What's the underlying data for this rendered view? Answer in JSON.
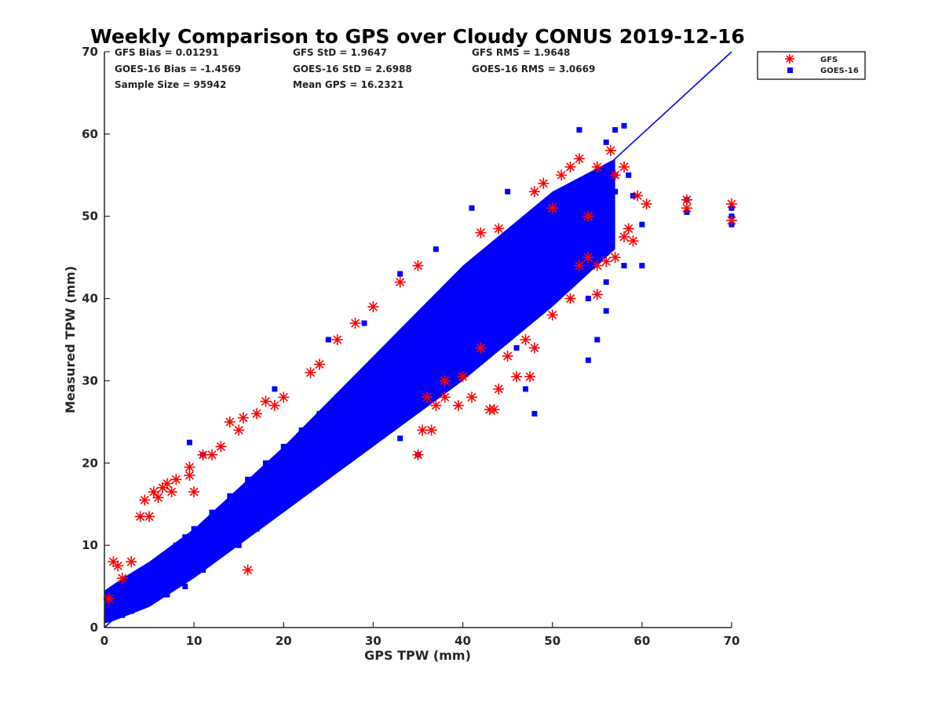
{
  "chart_data": {
    "type": "scatter",
    "title": "Weekly Comparison to GPS over Cloudy CONUS 2019-12-16",
    "xlabel": "GPS TPW (mm)",
    "ylabel": "Measured TPW (mm)",
    "xlim": [
      0,
      70
    ],
    "ylim": [
      0,
      70
    ],
    "xticks": [
      "0",
      "10",
      "20",
      "30",
      "40",
      "50",
      "60",
      "70"
    ],
    "yticks": [
      "0",
      "10",
      "20",
      "30",
      "40",
      "50",
      "60",
      "70"
    ],
    "grid": false,
    "legend_position": "top-right (outside plot)",
    "stats": [
      "GFS Bias = 0.01291",
      "GFS StD = 1.9647",
      "GFS RMS = 1.9648",
      "GOES-16 Bias = -1.4569",
      "GOES-16 StD = 2.6988",
      "GOES-16 RMS = 3.0669",
      "Sample Size = 95942",
      "Mean GPS = 16.2321"
    ],
    "series": [
      {
        "name": "GFS",
        "marker": "asterisk",
        "color": "#ff0000",
        "points": [
          [
            0.5,
            3.5
          ],
          [
            1,
            8
          ],
          [
            1.5,
            7.5
          ],
          [
            2,
            6
          ],
          [
            3,
            8
          ],
          [
            4,
            13.5
          ],
          [
            4.5,
            15.5
          ],
          [
            5,
            13.5
          ],
          [
            5.5,
            16.5
          ],
          [
            6,
            15.8
          ],
          [
            6.5,
            17
          ],
          [
            7,
            17.5
          ],
          [
            7.5,
            16.5
          ],
          [
            8,
            18
          ],
          [
            9.5,
            18.5
          ],
          [
            9.5,
            19.5
          ],
          [
            10,
            16.5
          ],
          [
            11,
            21
          ],
          [
            12,
            21
          ],
          [
            13,
            22
          ],
          [
            14,
            25
          ],
          [
            15,
            24
          ],
          [
            15.5,
            25.5
          ],
          [
            16,
            7
          ],
          [
            17,
            26
          ],
          [
            18,
            27.5
          ],
          [
            19,
            27
          ],
          [
            20,
            28
          ],
          [
            23,
            31
          ],
          [
            24,
            32
          ],
          [
            26,
            35
          ],
          [
            28,
            37
          ],
          [
            30,
            39
          ],
          [
            33,
            42
          ],
          [
            35,
            44
          ],
          [
            36,
            28
          ],
          [
            37,
            27
          ],
          [
            38,
            30
          ],
          [
            40,
            30.5
          ],
          [
            42,
            34
          ],
          [
            42,
            48
          ],
          [
            43,
            26.5
          ],
          [
            43.5,
            26.5
          ],
          [
            44,
            29
          ],
          [
            44,
            48.5
          ],
          [
            46,
            30.5
          ],
          [
            47,
            35
          ],
          [
            47.5,
            30.5
          ],
          [
            48,
            34
          ],
          [
            48,
            53
          ],
          [
            49,
            54
          ],
          [
            50,
            51
          ],
          [
            51,
            55
          ],
          [
            52,
            56
          ],
          [
            53,
            57
          ],
          [
            54,
            45
          ],
          [
            55,
            56
          ],
          [
            55,
            44
          ],
          [
            55,
            40.5
          ],
          [
            56,
            44.5
          ],
          [
            56.5,
            58
          ],
          [
            57,
            45
          ],
          [
            57,
            55
          ],
          [
            58,
            47.5
          ],
          [
            58,
            56
          ],
          [
            58.5,
            48.5
          ],
          [
            59,
            47
          ],
          [
            59.5,
            52.5
          ],
          [
            60.5,
            51.5
          ],
          [
            65,
            52
          ],
          [
            65,
            51
          ],
          [
            70,
            51.5
          ],
          [
            70,
            49.5
          ],
          [
            35,
            21
          ],
          [
            35.5,
            24
          ],
          [
            36.5,
            24
          ],
          [
            38,
            28
          ],
          [
            39.5,
            27
          ],
          [
            41,
            28
          ],
          [
            45,
            33
          ],
          [
            50,
            38
          ],
          [
            52,
            40
          ],
          [
            53,
            44
          ],
          [
            54,
            50
          ]
        ]
      },
      {
        "name": "GOES-16",
        "marker": "square",
        "color": "#0000ff",
        "points": [
          [
            0.5,
            1.5
          ],
          [
            1,
            2
          ],
          [
            2,
            1.5
          ],
          [
            3,
            3
          ],
          [
            4,
            5
          ],
          [
            5,
            6
          ],
          [
            6,
            7
          ],
          [
            7,
            9
          ],
          [
            8,
            10
          ],
          [
            9,
            11
          ],
          [
            10,
            12
          ],
          [
            12,
            14
          ],
          [
            14,
            16
          ],
          [
            16,
            18
          ],
          [
            18,
            20
          ],
          [
            20,
            22
          ],
          [
            22,
            24
          ],
          [
            24,
            26
          ],
          [
            26,
            28
          ],
          [
            28,
            30
          ],
          [
            30,
            32
          ],
          [
            32,
            34
          ],
          [
            34,
            36
          ],
          [
            36,
            38
          ],
          [
            38,
            40
          ],
          [
            40,
            41
          ],
          [
            42,
            43
          ],
          [
            44,
            45
          ],
          [
            46,
            46
          ],
          [
            48,
            47
          ],
          [
            50,
            48
          ],
          [
            52,
            50
          ],
          [
            54,
            51
          ],
          [
            56,
            52
          ],
          [
            57,
            55
          ],
          [
            57,
            53
          ],
          [
            53,
            60.5
          ],
          [
            57,
            60.5
          ],
          [
            56,
            59
          ],
          [
            58,
            61
          ],
          [
            58.5,
            55
          ],
          [
            59,
            52.5
          ],
          [
            60,
            49
          ],
          [
            60,
            44
          ],
          [
            55,
            35
          ],
          [
            54,
            32.5
          ],
          [
            48,
            26
          ],
          [
            47,
            29
          ],
          [
            46,
            34
          ],
          [
            45,
            37.5
          ],
          [
            56,
            38.5
          ],
          [
            54,
            40
          ],
          [
            56,
            42
          ],
          [
            58,
            44
          ],
          [
            65,
            50.5
          ],
          [
            65,
            52
          ],
          [
            70,
            50
          ],
          [
            70,
            49
          ],
          [
            70,
            51
          ],
          [
            35,
            21
          ],
          [
            33,
            23
          ],
          [
            31,
            25
          ],
          [
            29,
            24
          ],
          [
            27,
            22
          ],
          [
            25,
            20
          ],
          [
            23,
            18
          ],
          [
            21,
            16
          ],
          [
            19,
            14
          ],
          [
            17,
            12
          ],
          [
            15,
            10
          ],
          [
            13,
            9
          ],
          [
            11,
            7
          ],
          [
            9,
            5
          ],
          [
            7,
            4
          ],
          [
            5,
            3
          ],
          [
            3,
            2
          ],
          [
            9.5,
            22.5
          ],
          [
            11,
            21
          ],
          [
            19,
            29
          ],
          [
            25,
            35
          ],
          [
            29,
            37
          ],
          [
            33,
            43
          ],
          [
            37,
            46
          ],
          [
            41,
            51
          ],
          [
            45,
            53
          ]
        ]
      },
      {
        "name": "",
        "marker": "line",
        "color": "#0000ff",
        "points": [
          [
            0,
            0
          ],
          [
            57,
            57
          ],
          [
            70,
            70
          ]
        ]
      }
    ]
  },
  "legend": {
    "items": [
      {
        "label": "GFS",
        "color": "#ff0000",
        "marker": "asterisk"
      },
      {
        "label": "GOES-16",
        "color": "#0000ff",
        "marker": "square"
      }
    ]
  }
}
